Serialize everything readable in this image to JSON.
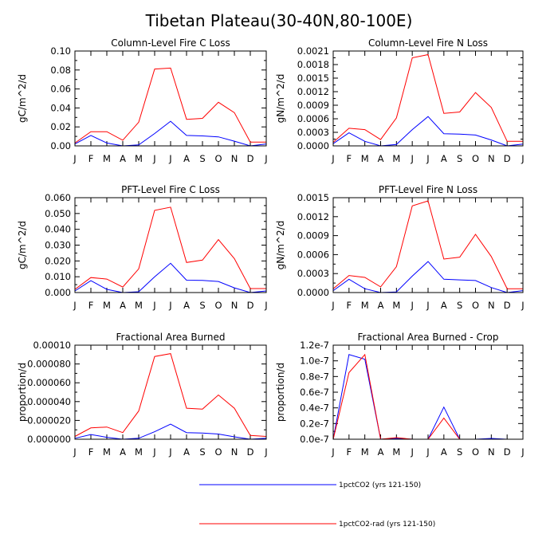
{
  "title": "Tibetan Plateau(30-40N,80-100E)",
  "months": [
    "J",
    "F",
    "M",
    "A",
    "M",
    "J",
    "J",
    "A",
    "S",
    "O",
    "N",
    "D",
    "J"
  ],
  "colors": {
    "blue": "#0000ff",
    "red": "#ff0000"
  },
  "legend": [
    {
      "label": "1pctCO2 (yrs 121-150)",
      "color": "#0000ff"
    },
    {
      "label": "1pctCO2-rad (yrs 121-150)",
      "color": "#ff0000"
    }
  ],
  "chart_data": [
    {
      "type": "line",
      "title": "Column-Level Fire C Loss",
      "ylabel": "gC/m^2/d",
      "x": [
        "J",
        "F",
        "M",
        "A",
        "M",
        "J",
        "J",
        "A",
        "S",
        "O",
        "N",
        "D",
        "J"
      ],
      "ylim": [
        0,
        0.1
      ],
      "yticks": [
        "0.00",
        "0.02",
        "0.04",
        "0.06",
        "0.08",
        "0.10"
      ],
      "series": [
        {
          "name": "1pctCO2 (yrs 121-150)",
          "color": "#0000ff",
          "values": [
            0.002,
            0.011,
            0.003,
            0.0,
            0.001,
            0.013,
            0.026,
            0.011,
            0.0105,
            0.0095,
            0.005,
            0.0,
            0.002
          ]
        },
        {
          "name": "1pctCO2-rad (yrs 121-150)",
          "color": "#ff0000",
          "values": [
            0.003,
            0.015,
            0.015,
            0.006,
            0.025,
            0.081,
            0.082,
            0.028,
            0.029,
            0.046,
            0.035,
            0.004,
            0.004
          ]
        }
      ]
    },
    {
      "type": "line",
      "title": "Column-Level Fire N Loss",
      "ylabel": "gN/m^2/d",
      "x": [
        "J",
        "F",
        "M",
        "A",
        "M",
        "J",
        "J",
        "A",
        "S",
        "O",
        "N",
        "D",
        "J"
      ],
      "ylim": [
        0,
        0.0021
      ],
      "yticks": [
        "0.0000",
        "0.0003",
        "0.0006",
        "0.0009",
        "0.0012",
        "0.0015",
        "0.0018",
        "0.0021"
      ],
      "series": [
        {
          "name": "1pctCO2 (yrs 121-150)",
          "color": "#0000ff",
          "values": [
            5e-05,
            0.00029,
            0.0001,
            0.0,
            3e-05,
            0.00036,
            0.00065,
            0.00027,
            0.00026,
            0.00024,
            0.00013,
            0.0,
            4e-05
          ]
        },
        {
          "name": "1pctCO2-rad (yrs 121-150)",
          "color": "#ff0000",
          "values": [
            8e-05,
            0.00039,
            0.00036,
            0.00014,
            0.00062,
            0.00195,
            0.00202,
            0.00072,
            0.00075,
            0.00118,
            0.00085,
            0.0001,
            0.0001
          ]
        }
      ]
    },
    {
      "type": "line",
      "title": "PFT-Level Fire C Loss",
      "ylabel": "gC/m^2/d",
      "x": [
        "J",
        "F",
        "M",
        "A",
        "M",
        "J",
        "J",
        "A",
        "S",
        "O",
        "N",
        "D",
        "J"
      ],
      "ylim": [
        0,
        0.06
      ],
      "yticks": [
        "0.000",
        "0.010",
        "0.020",
        "0.030",
        "0.040",
        "0.050",
        "0.060"
      ],
      "series": [
        {
          "name": "1pctCO2 (yrs 121-150)",
          "color": "#0000ff",
          "values": [
            0.001,
            0.0075,
            0.002,
            0.0,
            0.0005,
            0.01,
            0.0185,
            0.0078,
            0.0077,
            0.007,
            0.003,
            0.0,
            0.001
          ]
        },
        {
          "name": "1pctCO2-rad (yrs 121-150)",
          "color": "#ff0000",
          "values": [
            0.002,
            0.0095,
            0.0085,
            0.0035,
            0.015,
            0.052,
            0.054,
            0.019,
            0.0205,
            0.0335,
            0.0215,
            0.0025,
            0.0025
          ]
        }
      ]
    },
    {
      "type": "line",
      "title": "PFT-Level Fire N Loss",
      "ylabel": "gN/m^2/d",
      "x": [
        "J",
        "F",
        "M",
        "A",
        "M",
        "J",
        "J",
        "A",
        "S",
        "O",
        "N",
        "D",
        "J"
      ],
      "ylim": [
        0,
        0.0015
      ],
      "yticks": [
        "0.0000",
        "0.0003",
        "0.0006",
        "0.0009",
        "0.0012",
        "0.0015"
      ],
      "series": [
        {
          "name": "1pctCO2 (yrs 121-150)",
          "color": "#0000ff",
          "values": [
            3e-05,
            0.00021,
            6e-05,
            0.0,
            1e-05,
            0.00026,
            0.00049,
            0.00021,
            0.0002,
            0.00019,
            8e-05,
            0.0,
            3e-05
          ]
        },
        {
          "name": "1pctCO2-rad (yrs 121-150)",
          "color": "#ff0000",
          "values": [
            6e-05,
            0.00027,
            0.00024,
            9e-05,
            0.00041,
            0.00137,
            0.00145,
            0.00053,
            0.00056,
            0.00092,
            0.00057,
            6e-05,
            6e-05
          ]
        }
      ]
    },
    {
      "type": "line",
      "title": "Fractional Area Burned",
      "ylabel": "proportion/d",
      "x": [
        "J",
        "F",
        "M",
        "A",
        "M",
        "J",
        "J",
        "A",
        "S",
        "O",
        "N",
        "D",
        "J"
      ],
      "ylim": [
        0,
        0.0001
      ],
      "yticks": [
        "0.000000",
        "0.000020",
        "0.000040",
        "0.000060",
        "0.000080",
        "0.00010"
      ],
      "series": [
        {
          "name": "1pctCO2 (yrs 121-150)",
          "color": "#0000ff",
          "values": [
            1e-06,
            5e-06,
            2e-06,
            0.0,
            1e-06,
            8e-06,
            1.6e-05,
            7e-06,
            6.5e-06,
            5.5e-06,
            2.5e-06,
            0.0,
            1e-06
          ]
        },
        {
          "name": "1pctCO2-rad (yrs 121-150)",
          "color": "#ff0000",
          "values": [
            3e-06,
            1.2e-05,
            1.3e-05,
            7e-06,
            3e-05,
            8.8e-05,
            9.1e-05,
            3.3e-05,
            3.2e-05,
            4.7e-05,
            3.3e-05,
            4e-06,
            3e-06
          ]
        }
      ]
    },
    {
      "type": "line",
      "title": "Fractional Area Burned - Crop",
      "ylabel": "proportion/d",
      "x": [
        "J",
        "F",
        "M",
        "A",
        "M",
        "J",
        "J",
        "A",
        "S",
        "O",
        "N",
        "D",
        "J"
      ],
      "ylim": [
        0,
        1.2e-07
      ],
      "yticks": [
        "0.0e-7",
        "0.2e-7",
        "0.4e-7",
        "0.6e-7",
        "0.8e-7",
        "1.0e-7",
        "1.2e-7"
      ],
      "series": [
        {
          "name": "1pctCO2 (yrs 121-150)",
          "color": "#0000ff",
          "values": [
            0,
            1.08e-07,
            1.02e-07,
            0,
            1e-09,
            0,
            0,
            4.1e-08,
            0,
            0,
            1e-09,
            0,
            0
          ]
        },
        {
          "name": "1pctCO2-rad (yrs 121-150)",
          "color": "#ff0000",
          "values": [
            0,
            8.5e-08,
            1.08e-07,
            0,
            2e-09,
            0,
            0,
            2.7e-08,
            0,
            0,
            0,
            0,
            0
          ]
        }
      ]
    }
  ]
}
